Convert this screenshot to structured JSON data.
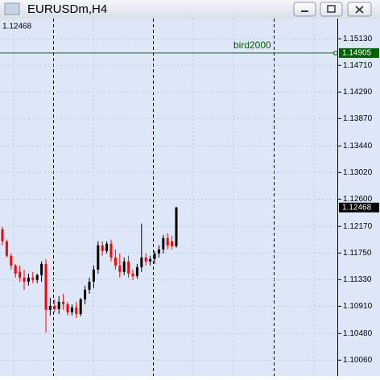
{
  "window": {
    "title": "EURUSDm,H4"
  },
  "chart_data": {
    "type": "candlestick",
    "ylim": [
      1.0981,
      1.1545
    ],
    "yticks": [
      {
        "value": 1.1513,
        "label": "1.15130"
      },
      {
        "value": 1.1471,
        "label": "1.14710"
      },
      {
        "value": 1.1429,
        "label": "1.14290"
      },
      {
        "value": 1.1387,
        "label": "1.13870"
      },
      {
        "value": 1.1344,
        "label": "1.13440"
      },
      {
        "value": 1.1302,
        "label": "1.13020"
      },
      {
        "value": 1.126,
        "label": "1.12600"
      },
      {
        "value": 1.1217,
        "label": "1.12170"
      },
      {
        "value": 1.1175,
        "label": "1.11750"
      },
      {
        "value": 1.1133,
        "label": "1.11330"
      },
      {
        "value": 1.1091,
        "label": "1.10910"
      },
      {
        "value": 1.1048,
        "label": "1.10480"
      },
      {
        "value": 1.1006,
        "label": "1.10060"
      }
    ],
    "grid": true,
    "up_color": "#000000",
    "down_color": "#ff0000",
    "last_price": 1.12468,
    "hline": {
      "name": "bird2000",
      "value": 1.14905,
      "color": "#006400"
    },
    "open": [
      1.12126,
      1.11935,
      1.11706,
      1.11553,
      1.11451,
      1.11362,
      1.11298,
      1.11362,
      1.11324,
      1.114,
      1.11578,
      1.10853,
      1.10916,
      1.10865,
      1.1098,
      1.10942,
      1.10815,
      1.10891,
      1.10789,
      1.11018,
      1.11171,
      1.11298,
      1.11489,
      1.11871,
      1.11782,
      1.11897,
      1.1168,
      1.11553,
      1.11451,
      1.11617,
      1.11426,
      1.11387,
      1.11527,
      1.1168,
      1.11617,
      1.11655,
      1.11744,
      1.11807,
      1.11986,
      1.11935,
      1.11858
    ],
    "high": [
      1.12164,
      1.1196,
      1.11744,
      1.11578,
      1.11553,
      1.11489,
      1.11426,
      1.11451,
      1.11426,
      1.11617,
      1.11655,
      1.11044,
      1.11018,
      1.11069,
      1.11107,
      1.1098,
      1.10942,
      1.1098,
      1.11044,
      1.11235,
      1.11362,
      1.11553,
      1.11935,
      1.11935,
      1.11935,
      1.1196,
      1.11807,
      1.11744,
      1.1168,
      1.11706,
      1.11489,
      1.11578,
      1.12215,
      1.11744,
      1.11706,
      1.11782,
      1.11871,
      1.12037,
      1.12062,
      1.12024,
      1.1248
    ],
    "low": [
      1.11871,
      1.1168,
      1.11489,
      1.11362,
      1.11298,
      1.11171,
      1.11235,
      1.11273,
      1.11273,
      1.11298,
      1.10496,
      1.10764,
      1.10815,
      1.10789,
      1.10853,
      1.10764,
      1.10764,
      1.10725,
      1.10751,
      1.10942,
      1.11107,
      1.11196,
      1.11426,
      1.11706,
      1.11744,
      1.11617,
      1.11489,
      1.11362,
      1.114,
      1.11362,
      1.11324,
      1.11349,
      1.11451,
      1.11553,
      1.11553,
      1.11578,
      1.1168,
      1.11744,
      1.11807,
      1.11807,
      1.11833
    ],
    "close": [
      1.11935,
      1.11706,
      1.11553,
      1.11426,
      1.11362,
      1.11298,
      1.11362,
      1.11324,
      1.114,
      1.11578,
      1.10853,
      1.10916,
      1.10865,
      1.1098,
      1.10942,
      1.10815,
      1.10891,
      1.10789,
      1.11018,
      1.11171,
      1.11298,
      1.11489,
      1.11871,
      1.11782,
      1.11897,
      1.1168,
      1.11553,
      1.11451,
      1.11617,
      1.11426,
      1.11387,
      1.11527,
      1.1168,
      1.11617,
      1.11655,
      1.11744,
      1.11807,
      1.11986,
      1.11871,
      1.11858,
      1.12468
    ]
  }
}
